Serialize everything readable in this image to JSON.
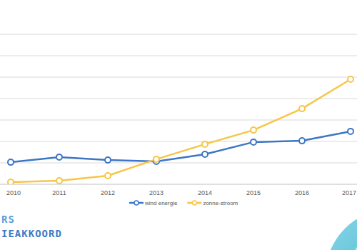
{
  "chart_data": {
    "type": "line",
    "categories": [
      "2010",
      "2011",
      "2012",
      "2013",
      "2014",
      "2015",
      "2016",
      "2017"
    ],
    "series": [
      {
        "name": "wind energie",
        "color": "#3d76c6",
        "marker": "circle",
        "values": [
          1.03,
          1.27,
          1.13,
          1.07,
          1.4,
          1.97,
          2.03,
          2.47
        ]
      },
      {
        "name": "zonne-stroom",
        "color": "#f7c648",
        "marker": "circle",
        "values": [
          0.1,
          0.17,
          0.4,
          1.17,
          1.87,
          2.53,
          3.53,
          4.9
        ]
      }
    ],
    "ylim": [
      0,
      7
    ],
    "yticks": [
      0,
      1,
      2,
      3,
      4,
      5,
      6,
      7
    ],
    "grid": true,
    "legend": "bottom",
    "tick_labels": "x"
  },
  "logo": {
    "lines": [
      "RS",
      "IEAKKOORD"
    ]
  }
}
